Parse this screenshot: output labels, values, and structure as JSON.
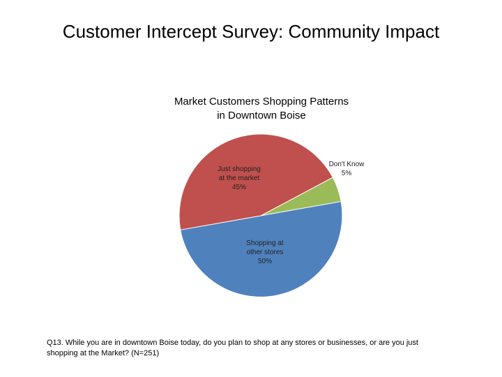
{
  "slide": {
    "title": "Customer Intercept Survey: Community Impact"
  },
  "chart_data": {
    "type": "pie",
    "title_lines": [
      "Market Customers Shopping Patterns",
      "in Downtown Boise"
    ],
    "slices": [
      {
        "label_lines": [
          "Don't Know"
        ],
        "value": 5,
        "value_label": "5%",
        "color": "#9bbb59"
      },
      {
        "label_lines": [
          "Shopping at",
          "other stores"
        ],
        "value": 50,
        "value_label": "50%",
        "color": "#4f81bd"
      },
      {
        "label_lines": [
          "Just shopping",
          "at the market"
        ],
        "value": 45,
        "value_label": "45%",
        "color": "#c0504d"
      }
    ]
  },
  "footnote": {
    "line1": "Q13.  While you are in downtown Boise today, do you plan to shop at any stores or businesses, or are you just",
    "line2": "shopping at the Market? (N=251)"
  }
}
